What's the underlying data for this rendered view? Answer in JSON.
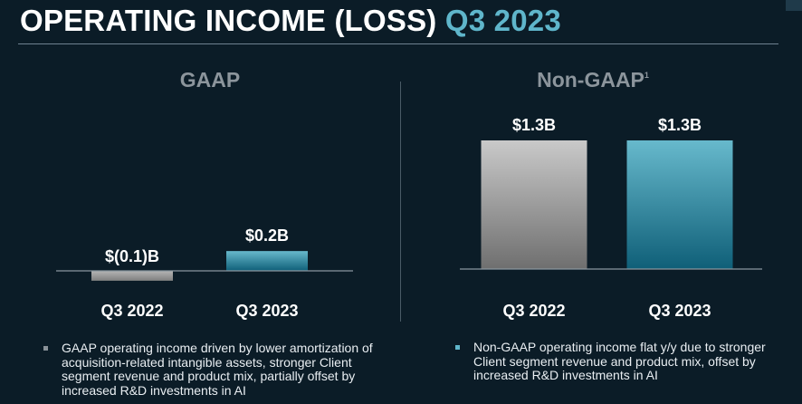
{
  "header": {
    "title_main": "OPERATING INCOME (LOSS)",
    "title_accent": "Q3 2023"
  },
  "colors": {
    "background": "#0b1c27",
    "accent": "#5fb6cb",
    "gray_bar": "#8c8c8c",
    "teal_bar": "#3f93aa"
  },
  "chart_data": [
    {
      "type": "bar",
      "title": "GAAP",
      "categories": [
        "Q3 2022",
        "Q3 2023"
      ],
      "values": [
        -0.1,
        0.2
      ],
      "value_labels": [
        "$(0.1)B",
        "$0.2B"
      ],
      "unit": "$B",
      "ylim": [
        -0.15,
        1.4
      ],
      "grid": false
    },
    {
      "type": "bar",
      "title": "Non-GAAP",
      "title_superscript": "1",
      "categories": [
        "Q3 2022",
        "Q3 2023"
      ],
      "values": [
        1.3,
        1.3
      ],
      "value_labels": [
        "$1.3B",
        "$1.3B"
      ],
      "unit": "$B",
      "ylim": [
        -0.15,
        1.4
      ],
      "grid": false
    }
  ],
  "notes": {
    "left": "GAAP operating income driven by lower amortization of acquisition-related intangible assets, stronger Client segment revenue and product mix, partially offset by increased R&D investments in AI",
    "right": "Non-GAAP operating income flat y/y due to stronger Client segment revenue and product mix, offset by increased R&D investments in AI"
  }
}
